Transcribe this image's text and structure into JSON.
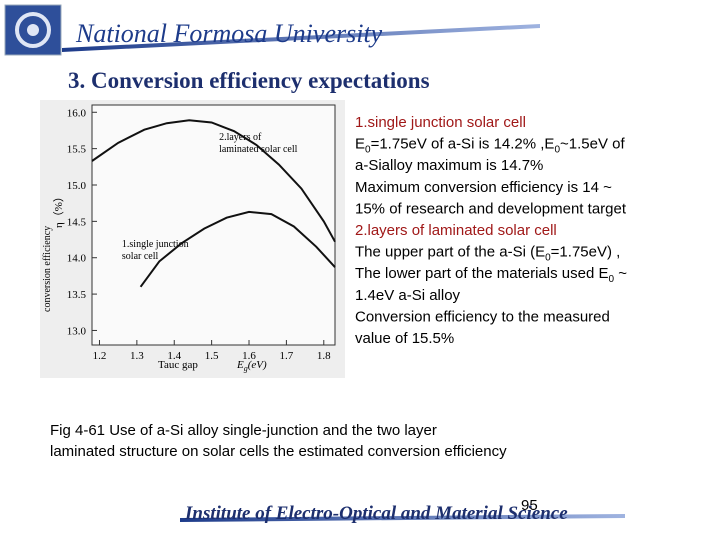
{
  "header": {
    "title": "National Formosa University"
  },
  "slide": {
    "title": "3. Conversion efficiency expectations"
  },
  "figure": {
    "type": "line",
    "y_label": "conversion efficiency",
    "y_symbol": "η（%）",
    "x_label": "Tauc gap",
    "x_symbol": "E",
    "x_symbol_sub": "g",
    "x_unit": "(eV)",
    "annotations": [
      {
        "lines": [
          "2.layers of",
          "laminated solar cell"
        ],
        "x": 1.52,
        "y": 15.62
      },
      {
        "lines": [
          "1.single junction",
          "solar cell"
        ],
        "x": 1.26,
        "y": 14.15
      }
    ],
    "series": [
      {
        "color": "#111111",
        "x": [
          1.18,
          1.25,
          1.32,
          1.38,
          1.44,
          1.5,
          1.56,
          1.62,
          1.68,
          1.74,
          1.8,
          1.83
        ],
        "y": [
          15.33,
          15.58,
          15.76,
          15.85,
          15.89,
          15.86,
          15.74,
          15.55,
          15.28,
          14.95,
          14.5,
          14.22
        ]
      },
      {
        "color": "#111111",
        "x": [
          1.31,
          1.36,
          1.42,
          1.48,
          1.54,
          1.6,
          1.66,
          1.72,
          1.78,
          1.83
        ],
        "y": [
          13.6,
          13.95,
          14.2,
          14.4,
          14.55,
          14.63,
          14.6,
          14.43,
          14.15,
          13.87
        ]
      }
    ],
    "xlim": [
      1.18,
      1.83
    ],
    "ylim": [
      12.8,
      16.1
    ],
    "xticks": [
      1.2,
      1.3,
      1.4,
      1.5,
      1.6,
      1.7,
      1.8
    ],
    "yticks": [
      {
        "value": 13,
        "label": "13.0"
      },
      13.5,
      {
        "value": 14,
        "label": "14.0"
      },
      14.5,
      {
        "value": 15,
        "label": "15.0"
      },
      15.5,
      {
        "value": 16,
        "label": "16.0"
      }
    ]
  },
  "body": {
    "paragraphs": [
      {
        "color": "#a01818",
        "lines": [
          [
            "1.single junction solar cell"
          ]
        ]
      },
      {
        "color": "#000000",
        "lines": [
          [
            "E",
            {
              "sub": "0"
            },
            "=1.75eV of a-Si is 14.2% ,E",
            {
              "sub": "0"
            },
            "~1.5eV of"
          ],
          [
            "a-Sialloy maximum is 14.7%"
          ],
          [
            "Maximum conversion efficiency is 14 ~"
          ],
          [
            "15% of research and development target"
          ]
        ]
      },
      {
        "color": "#a01818",
        "lines": [
          [
            "2.layers of laminated solar cell"
          ]
        ]
      },
      {
        "color": "#000000",
        "lines": [
          [
            "The upper part of the a-Si (E",
            {
              "sub": "0"
            },
            "=1.75eV) ,"
          ],
          [
            "The lower part of the materials used E",
            {
              "sub": "0"
            },
            " ~"
          ],
          [
            "1.4eV a-Si alloy"
          ],
          [
            "Conversion efficiency to the measured"
          ],
          [
            "value of 15.5%"
          ]
        ]
      }
    ]
  },
  "caption": {
    "lines": [
      "Fig 4-61  Use of a-Si alloy single-junction and the two layer",
      "laminated structure on solar cells the estimated conversion efficiency"
    ]
  },
  "footer": {
    "institute": "Institute of Electro-Optical and Material Science",
    "page": "95"
  }
}
